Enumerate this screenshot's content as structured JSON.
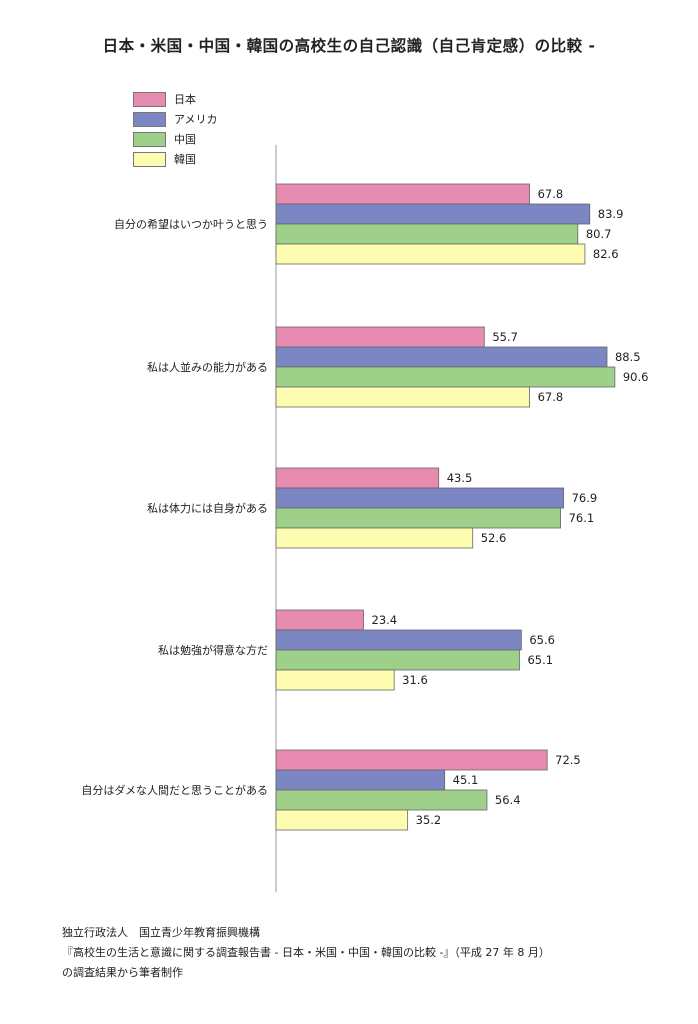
{
  "chart_data": {
    "type": "bar",
    "orientation": "horizontal",
    "title": "日本・米国・中国・韓国の高校生の自己認識（自己肯定感）の比較 -",
    "categories": [
      "自分の希望はいつか叶うと思う",
      "私は人並みの能力がある",
      "私は体力には自身がある",
      "私は勉強が得意な方だ",
      "自分はダメな人間だと思うことがある"
    ],
    "series": [
      {
        "name": "日本",
        "color": "#e88bb0",
        "values": [
          67.8,
          55.7,
          43.5,
          23.4,
          72.5
        ]
      },
      {
        "name": "アメリカ",
        "color": "#7b86c2",
        "values": [
          83.9,
          88.5,
          76.9,
          65.6,
          45.1
        ]
      },
      {
        "name": "中国",
        "color": "#9fd08a",
        "values": [
          80.7,
          90.6,
          76.1,
          65.1,
          56.4
        ]
      },
      {
        "name": "韓国",
        "color": "#fdfcb0",
        "values": [
          82.6,
          67.8,
          52.6,
          31.6,
          35.2
        ]
      }
    ],
    "value_labels": [
      [
        "67.8",
        "55.7",
        "43.5",
        "23.4",
        "72.5"
      ],
      [
        "83.9",
        "88.5",
        "76.9",
        "65.6",
        "45.1"
      ],
      [
        "80.7",
        "90.6",
        "76.1",
        "65.1",
        "56.4"
      ],
      [
        "82.6",
        "67.8",
        "52.6",
        "31.6",
        "35.2"
      ]
    ],
    "xlim": [
      0,
      100
    ],
    "grid": false,
    "legend_position": "top-left"
  },
  "footer": {
    "line1": "独立行政法人　国立青少年教育振興機構",
    "line2": "『高校生の生活と意識に関する調査報告書 - 日本・米国・中国・韓国の比較 -』（平成 27 年 8 月）",
    "line3": "の調査結果から筆者制作"
  }
}
